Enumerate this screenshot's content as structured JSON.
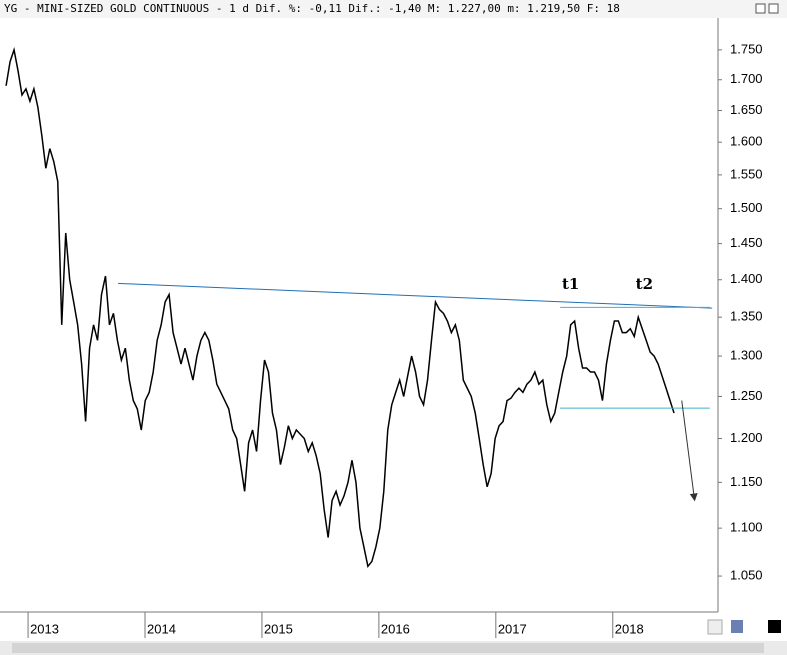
{
  "chart_data": {
    "type": "line",
    "title": "YG - MINI-SIZED GOLD CONTINUOUS -   1 d Dif. %: -0,11 Dif.: -1,40 M: 1.227,00 m: 1.219,50 F: 18",
    "x": [
      2012.812,
      2012.846,
      2012.88,
      2012.914,
      2012.948,
      2012.982,
      2013.016,
      2013.05,
      2013.084,
      2013.118,
      2013.152,
      2013.186,
      2013.22,
      2013.254,
      2013.288,
      2013.322,
      2013.356,
      2013.39,
      2013.424,
      2013.458,
      2013.492,
      2013.526,
      2013.56,
      2013.594,
      2013.628,
      2013.662,
      2013.696,
      2013.73,
      2013.764,
      2013.798,
      2013.832,
      2013.866,
      2013.9,
      2013.934,
      2013.968,
      2014.002,
      2014.036,
      2014.07,
      2014.104,
      2014.138,
      2014.172,
      2014.206,
      2014.24,
      2014.274,
      2014.308,
      2014.342,
      2014.376,
      2014.41,
      2014.444,
      2014.478,
      2014.512,
      2014.546,
      2014.58,
      2014.614,
      2014.648,
      2014.682,
      2014.716,
      2014.75,
      2014.784,
      2014.818,
      2014.852,
      2014.886,
      2014.92,
      2014.954,
      2014.988,
      2015.022,
      2015.056,
      2015.09,
      2015.124,
      2015.158,
      2015.192,
      2015.226,
      2015.26,
      2015.294,
      2015.328,
      2015.362,
      2015.396,
      2015.43,
      2015.464,
      2015.498,
      2015.532,
      2015.566,
      2015.6,
      2015.634,
      2015.668,
      2015.702,
      2015.736,
      2015.77,
      2015.804,
      2015.838,
      2015.872,
      2015.906,
      2015.94,
      2015.974,
      2016.008,
      2016.042,
      2016.076,
      2016.11,
      2016.144,
      2016.178,
      2016.212,
      2016.246,
      2016.28,
      2016.314,
      2016.348,
      2016.382,
      2016.416,
      2016.45,
      2016.484,
      2016.518,
      2016.552,
      2016.586,
      2016.62,
      2016.654,
      2016.688,
      2016.722,
      2016.756,
      2016.79,
      2016.824,
      2016.858,
      2016.892,
      2016.926,
      2016.96,
      2016.994,
      2017.028,
      2017.062,
      2017.096,
      2017.13,
      2017.164,
      2017.198,
      2017.232,
      2017.266,
      2017.3,
      2017.334,
      2017.368,
      2017.402,
      2017.436,
      2017.47,
      2017.504,
      2017.538,
      2017.572,
      2017.606,
      2017.64,
      2017.674,
      2017.708,
      2017.742,
      2017.776,
      2017.81,
      2017.844,
      2017.878,
      2017.912,
      2017.946,
      2017.98,
      2018.014,
      2018.048,
      2018.082,
      2018.116,
      2018.15,
      2018.184,
      2018.218,
      2018.252,
      2018.286,
      2018.32,
      2018.354,
      2018.388,
      2018.422,
      2018.456,
      2018.49,
      2018.524
    ],
    "series": [
      {
        "color": "#000000",
        "values": [
          1690,
          1730,
          1750,
          1715,
          1675,
          1685,
          1665,
          1685,
          1655,
          1610,
          1560,
          1590,
          1570,
          1540,
          1340,
          1465,
          1400,
          1370,
          1340,
          1290,
          1220,
          1310,
          1340,
          1320,
          1380,
          1405,
          1340,
          1355,
          1320,
          1295,
          1310,
          1270,
          1245,
          1235,
          1210,
          1245,
          1255,
          1280,
          1320,
          1340,
          1370,
          1380,
          1330,
          1310,
          1290,
          1310,
          1290,
          1270,
          1300,
          1320,
          1330,
          1320,
          1295,
          1265,
          1255,
          1245,
          1235,
          1210,
          1200,
          1170,
          1140,
          1195,
          1210,
          1185,
          1245,
          1295,
          1280,
          1230,
          1210,
          1170,
          1190,
          1215,
          1200,
          1210,
          1205,
          1200,
          1185,
          1195,
          1180,
          1160,
          1120,
          1090,
          1130,
          1140,
          1125,
          1135,
          1150,
          1175,
          1150,
          1100,
          1080,
          1060,
          1065,
          1080,
          1100,
          1140,
          1210,
          1240,
          1255,
          1270,
          1250,
          1275,
          1300,
          1280,
          1250,
          1240,
          1270,
          1320,
          1370,
          1360,
          1355,
          1345,
          1330,
          1340,
          1320,
          1270,
          1260,
          1250,
          1230,
          1200,
          1170,
          1145,
          1160,
          1200,
          1215,
          1220,
          1245,
          1248,
          1255,
          1260,
          1255,
          1265,
          1270,
          1280,
          1265,
          1270,
          1240,
          1220,
          1230,
          1255,
          1280,
          1300,
          1340,
          1345,
          1310,
          1285,
          1285,
          1280,
          1280,
          1270,
          1245,
          1290,
          1320,
          1345,
          1345,
          1330,
          1330,
          1335,
          1325,
          1350,
          1335,
          1320,
          1305,
          1300,
          1290,
          1275,
          1260,
          1245,
          1230
        ]
      }
    ],
    "xlim": [
      2012.76,
      2018.9
    ],
    "xticks": [
      2013,
      2014,
      2015,
      2016,
      2017,
      2018
    ],
    "ylim": [
      1014,
      1805
    ],
    "log_scale": true,
    "yticks": [
      {
        "value": 1050,
        "label": "1.050"
      },
      {
        "value": 1100,
        "label": "1.100"
      },
      {
        "value": 1150,
        "label": "1.150"
      },
      {
        "value": 1200,
        "label": "1.200"
      },
      {
        "value": 1250,
        "label": "1.250"
      },
      {
        "value": 1300,
        "label": "1.300"
      },
      {
        "value": 1350,
        "label": "1.350"
      },
      {
        "value": 1400,
        "label": "1.400"
      },
      {
        "value": 1450,
        "label": "1.450"
      },
      {
        "value": 1500,
        "label": "1.500"
      },
      {
        "value": 1550,
        "label": "1.550"
      },
      {
        "value": 1600,
        "label": "1.600"
      },
      {
        "value": 1650,
        "label": "1.650"
      },
      {
        "value": 1700,
        "label": "1.700"
      },
      {
        "value": 1750,
        "label": "1.750"
      }
    ],
    "trend_lines": [
      {
        "color": "#1f6fb5",
        "x": [
          2013.77,
          2018.85
        ],
        "y": [
          1395,
          1362
        ]
      },
      {
        "color": "#3cb4c8",
        "x": [
          2017.55,
          2018.83
        ],
        "y": [
          1363,
          1363
        ]
      },
      {
        "color": "#3cb4c8",
        "x": [
          2017.55,
          2018.83
        ],
        "y": [
          1236,
          1236
        ]
      },
      {
        "color": "#333333",
        "x": [
          2018.59,
          2018.7
        ],
        "y": [
          1245,
          1130
        ],
        "arrow": true
      }
    ],
    "annotations": [
      {
        "text": "t1",
        "x": 2017.64,
        "y": 1393
      },
      {
        "text": "t2",
        "x": 2018.27,
        "y": 1393
      }
    ]
  }
}
